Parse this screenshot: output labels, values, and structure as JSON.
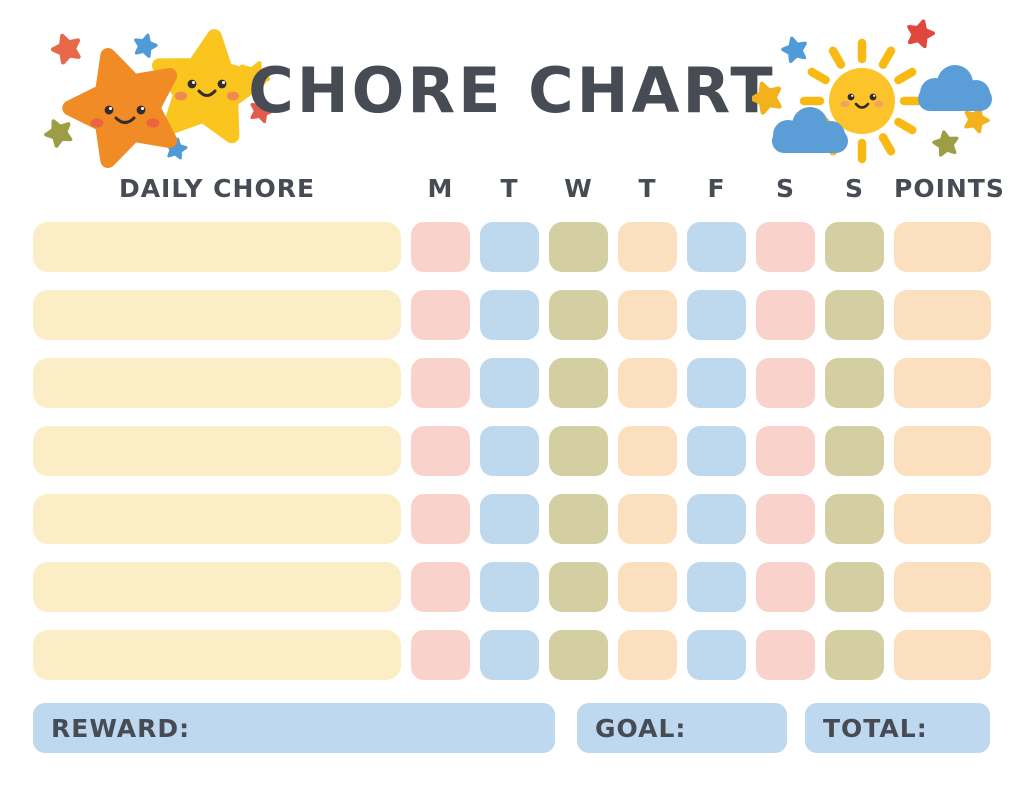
{
  "title": "CHORE CHART",
  "table": {
    "chore_header": "DAILY CHORE",
    "day_headers": [
      "M",
      "T",
      "W",
      "T",
      "F",
      "S",
      "S"
    ],
    "points_header": "POINTS",
    "num_rows": 7,
    "row_cell_colors": [
      "pink",
      "blue",
      "olive",
      "peach",
      "blue",
      "pink",
      "olive"
    ],
    "points_cell_color": "peach",
    "chore_cell_color": "cream"
  },
  "footer": {
    "reward_label": "REWARD:",
    "goal_label": "GOAL:",
    "total_label": "TOTAL:"
  },
  "colors": {
    "text": "#474c54",
    "cream": "#fbeec6",
    "pink": "#f9d2cc",
    "blue": "#bed8ee",
    "olive": "#d4cfa2",
    "peach": "#fbdfbe",
    "footer_box": "#bdd8ef",
    "star_orange": "#f08b26",
    "star_yellow": "#fac51f",
    "sun_yellow": "#fcc42a",
    "cloud_blue": "#5b9ed7",
    "sparkle_red": "#e25c4c",
    "sparkle_blue": "#4f9bd8",
    "sparkle_olive": "#9d9d45"
  },
  "decorations": {
    "left": "two smiling stars with sparkle stars",
    "right": "smiling sun with clouds and sparkle stars"
  }
}
